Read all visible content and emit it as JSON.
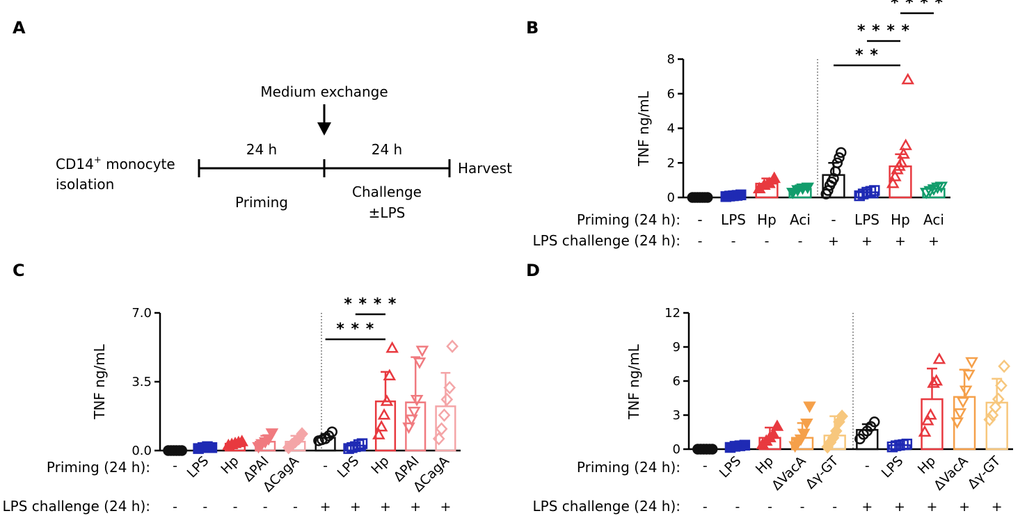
{
  "panels": {
    "A": "A",
    "B": "B",
    "C": "C",
    "D": "D"
  },
  "timeline": {
    "cell_label_1": "CD14",
    "cell_label_sup": "+",
    "cell_label_2": " monocyte",
    "cell_label_3": "isolation",
    "medium_exchange": "Medium exchange",
    "duration_1": "24 h",
    "duration_2": "24 h",
    "phase_1": "Priming",
    "phase_2_line1": "Challenge",
    "phase_2_line2": "±LPS",
    "harvest": "Harvest"
  },
  "colors": {
    "naive": "#111111",
    "lps": "#1f2ab4",
    "hp": "#e8393f",
    "aci": "#119c6b",
    "dpai": "#f07a7f",
    "dcaga": "#f4a5a7",
    "dvaca": "#f5a04a",
    "dggt": "#f7c77d"
  },
  "chart_data": [
    {
      "panel": "B",
      "type": "bar",
      "ylabel": "TNF ng/mL",
      "ylim": [
        0,
        8
      ],
      "yticks": [
        "0",
        "2",
        "4",
        "6",
        "8"
      ],
      "row1_label": "Priming (24 h):",
      "row2_label": "LPS challenge (24 h):",
      "categories": [
        "-",
        "LPS",
        "Hp",
        "Aci",
        "-",
        "LPS",
        "Hp",
        "Aci"
      ],
      "challenge": [
        "-",
        "-",
        "-",
        "-",
        "+",
        "+",
        "+",
        "+"
      ],
      "colors": [
        "naive",
        "lps",
        "hp",
        "aci",
        "naive",
        "lps",
        "hp",
        "aci"
      ],
      "markers": [
        "circle",
        "square",
        "triangle",
        "tridown",
        "circle",
        "square",
        "triangle",
        "tridown"
      ],
      "values": [
        0.02,
        0.1,
        0.8,
        0.5,
        1.3,
        0.3,
        1.8,
        0.5
      ],
      "sd": [
        0.02,
        0.08,
        0.3,
        0.2,
        0.7,
        0.15,
        0.7,
        0.15
      ],
      "points": [
        [
          0,
          0,
          0,
          0,
          0,
          0,
          0
        ],
        [
          0.05,
          0.08,
          0.1,
          0.12,
          0.15
        ],
        [
          0.5,
          0.7,
          0.8,
          1.1
        ],
        [
          0.3,
          0.45,
          0.55,
          0.6
        ],
        [
          0.2,
          0.4,
          0.7,
          0.9,
          1.1,
          1.5,
          2.0,
          2.3,
          2.6
        ],
        [
          0.1,
          0.2,
          0.3,
          0.35,
          0.4
        ],
        [
          0.8,
          1.2,
          1.6,
          1.8,
          2.0,
          2.5,
          3.0,
          6.8
        ],
        [
          0.3,
          0.4,
          0.5,
          0.6,
          0.65
        ]
      ],
      "sig": [
        {
          "from": 4,
          "to": 6,
          "label": "* *"
        },
        {
          "from": 5,
          "to": 6,
          "label": "* * * *"
        },
        {
          "from": 6,
          "to": 7,
          "label": "* * * *"
        }
      ]
    },
    {
      "panel": "C",
      "type": "bar",
      "ylabel": "TNF ng/mL",
      "ylim": [
        0,
        7
      ],
      "yticks": [
        "0.0",
        "3.5",
        "7.0"
      ],
      "row1_label": "Priming (24 h):",
      "row2_label": "LPS challenge  (24 h):",
      "categories": [
        "-",
        "LPS",
        "Hp",
        "ΔPAI",
        "ΔCagA",
        "-",
        "LPS",
        "Hp",
        "ΔPAI",
        "ΔCagA"
      ],
      "challenge": [
        "-",
        "-",
        "-",
        "-",
        "-",
        "+",
        "+",
        "+",
        "+",
        "+"
      ],
      "colors": [
        "naive",
        "lps",
        "hp",
        "dpai",
        "dcaga",
        "naive",
        "lps",
        "hp",
        "dpai",
        "dcaga"
      ],
      "markers": [
        "circle",
        "square",
        "triangle",
        "tridown",
        "diamond",
        "circle",
        "square",
        "triangle",
        "tridown",
        "diamond"
      ],
      "values": [
        0.02,
        0.15,
        0.35,
        0.45,
        0.45,
        0.65,
        0.25,
        2.5,
        2.45,
        2.25
      ],
      "sd": [
        0.02,
        0.06,
        0.12,
        0.3,
        0.3,
        0.2,
        0.1,
        1.5,
        2.3,
        1.7
      ],
      "points": [
        [
          0,
          0,
          0,
          0,
          0,
          0
        ],
        [
          0.1,
          0.15,
          0.2,
          0.15
        ],
        [
          0.25,
          0.3,
          0.35,
          0.4,
          0.45
        ],
        [
          0.2,
          0.35,
          0.45,
          0.6,
          0.9
        ],
        [
          0.15,
          0.3,
          0.45,
          0.6,
          0.85
        ],
        [
          0.5,
          0.55,
          0.6,
          0.75,
          0.95
        ],
        [
          0.1,
          0.15,
          0.2,
          0.3,
          0.35
        ],
        [
          0.8,
          1.2,
          1.8,
          2.5,
          3.8,
          5.2
        ],
        [
          1.2,
          1.6,
          2.0,
          2.6,
          4.5,
          5.1
        ],
        [
          0.6,
          1.1,
          1.8,
          2.6,
          3.2,
          5.3
        ]
      ],
      "sig": [
        {
          "from": 5,
          "to": 7,
          "label": "* * *"
        },
        {
          "from": 6,
          "to": 7,
          "label": "* * * *"
        }
      ]
    },
    {
      "panel": "D",
      "type": "bar",
      "ylabel": "TNF ng/mL",
      "ylim": [
        0,
        12
      ],
      "yticks": [
        "0",
        "3",
        "6",
        "9",
        "12"
      ],
      "row1_label": "Priming (24 h):",
      "row2_label": "LPS challenge  (24 h):",
      "categories": [
        "-",
        "LPS",
        "Hp",
        "ΔVacA",
        "Δγ-GT",
        "-",
        "LPS",
        "Hp",
        "ΔVacA",
        "Δγ-GT"
      ],
      "challenge": [
        "-",
        "-",
        "-",
        "-",
        "-",
        "+",
        "+",
        "+",
        "+",
        "+"
      ],
      "colors": [
        "naive",
        "lps",
        "hp",
        "dvaca",
        "dggt",
        "naive",
        "lps",
        "hp",
        "dvaca",
        "dggt"
      ],
      "markers": [
        "circle",
        "square",
        "triangle",
        "tridown",
        "diamond",
        "circle",
        "square",
        "triangle",
        "tridown",
        "diamond"
      ],
      "values": [
        0.02,
        0.25,
        1.0,
        1.0,
        1.2,
        1.7,
        0.35,
        4.4,
        4.6,
        4.1
      ],
      "sd": [
        0.02,
        0.1,
        0.9,
        1.3,
        1.7,
        0.5,
        0.1,
        2.7,
        2.4,
        2.1
      ],
      "points": [
        [
          0,
          0,
          0,
          0,
          0,
          0
        ],
        [
          0.15,
          0.25,
          0.3,
          0.35
        ],
        [
          0.4,
          0.7,
          1.0,
          1.3,
          2.0
        ],
        [
          0.3,
          0.6,
          0.9,
          1.4,
          2.3,
          3.8
        ],
        [
          0.2,
          0.6,
          1.0,
          1.6,
          2.4,
          2.9
        ],
        [
          0.9,
          1.3,
          1.6,
          2.0,
          2.4
        ],
        [
          0.2,
          0.3,
          0.35,
          0.4,
          0.45
        ],
        [
          1.5,
          2.5,
          3.0,
          5.8,
          6.0,
          7.9
        ],
        [
          2.4,
          3.2,
          4.2,
          5.2,
          6.6,
          7.7
        ],
        [
          2.6,
          3.0,
          3.7,
          4.4,
          5.6,
          7.3
        ]
      ],
      "sig": []
    }
  ]
}
